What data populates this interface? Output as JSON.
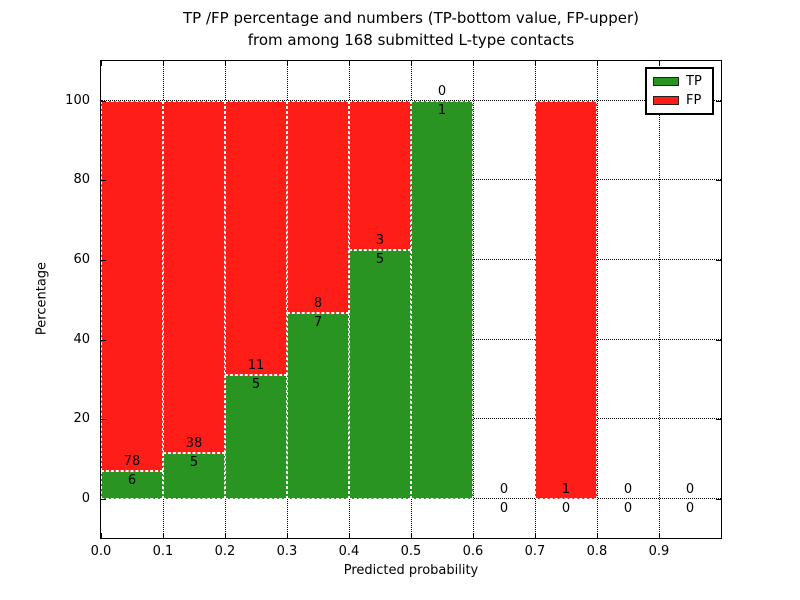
{
  "chart_data": {
    "type": "bar",
    "stacked": true,
    "title_lines": [
      "TP /FP percentage and numbers (TP-bottom value, FP-upper)",
      "from among 168 submitted L-type contacts"
    ],
    "xlabel": "Predicted probability",
    "ylabel": "Percentage",
    "xlim": [
      0.0,
      1.0
    ],
    "ylim": [
      -9.8,
      110
    ],
    "grid": true,
    "legend_position": "upper right",
    "total_submitted": 168,
    "colors": {
      "tp": "#2a9422",
      "fp": "#ff1d17",
      "grid": "#000000",
      "background": "#ffffff"
    },
    "legend": {
      "entries": [
        {
          "label": "TP",
          "series": "tp"
        },
        {
          "label": "FP",
          "series": "fp"
        }
      ]
    },
    "yticks": [
      0,
      20,
      40,
      60,
      80,
      100
    ],
    "xticks": [
      "0.0",
      "0.1",
      "0.2",
      "0.3",
      "0.4",
      "0.5",
      "0.6",
      "0.7",
      "0.8",
      "0.9"
    ],
    "bins": [
      {
        "range": [
          0.0,
          0.1
        ],
        "tp": 6,
        "fp": 78
      },
      {
        "range": [
          0.1,
          0.2
        ],
        "tp": 5,
        "fp": 38
      },
      {
        "range": [
          0.2,
          0.3
        ],
        "tp": 5,
        "fp": 11
      },
      {
        "range": [
          0.3,
          0.4
        ],
        "tp": 7,
        "fp": 8
      },
      {
        "range": [
          0.4,
          0.5
        ],
        "tp": 5,
        "fp": 3
      },
      {
        "range": [
          0.5,
          0.6
        ],
        "tp": 1,
        "fp": 0
      },
      {
        "range": [
          0.6,
          0.7
        ],
        "tp": 0,
        "fp": 0
      },
      {
        "range": [
          0.7,
          0.8
        ],
        "tp": 0,
        "fp": 1
      },
      {
        "range": [
          0.8,
          0.9
        ],
        "tp": 0,
        "fp": 0
      },
      {
        "range": [
          0.9,
          1.0
        ],
        "tp": 0,
        "fp": 0
      }
    ]
  }
}
